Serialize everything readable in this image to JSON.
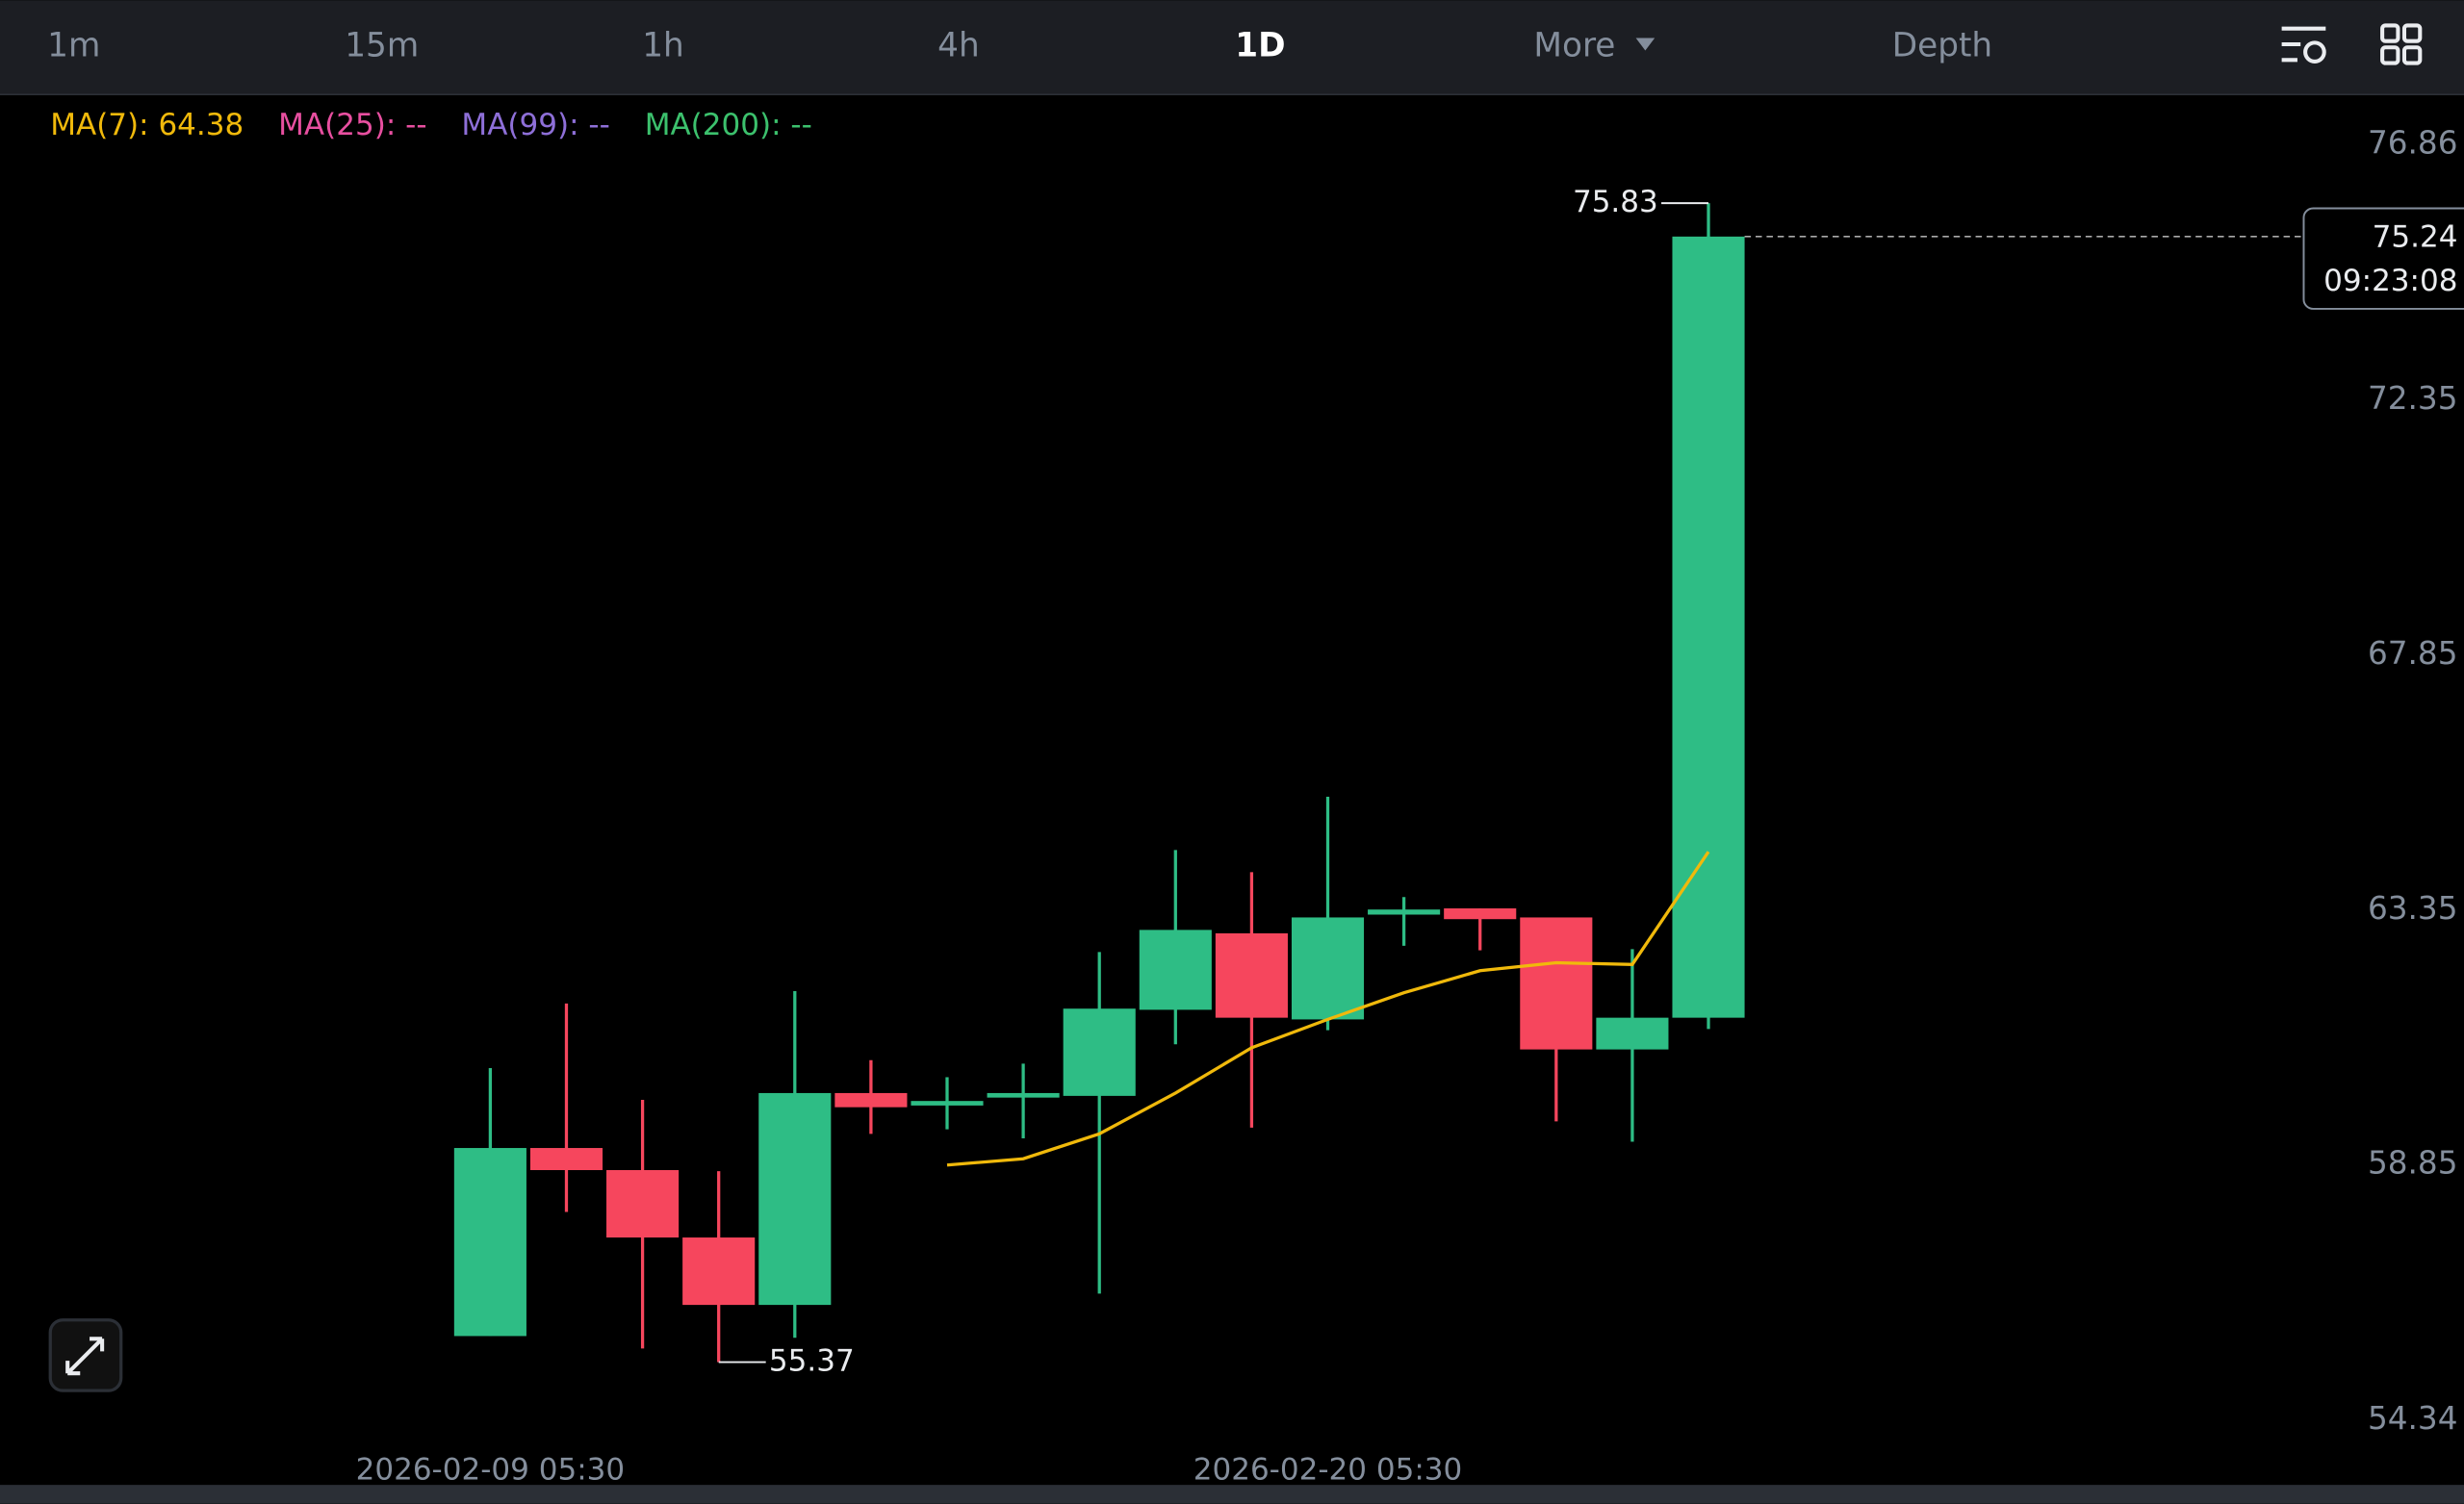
{
  "tabs": [
    {
      "label": "1m"
    },
    {
      "label": "15m"
    },
    {
      "label": "1h"
    },
    {
      "label": "4h"
    },
    {
      "label": "1D",
      "active": true
    },
    {
      "label": "More"
    },
    {
      "label": "Depth"
    }
  ],
  "chart_data": {
    "type": "candlestick",
    "indicators": [
      {
        "label": "MA(7): 64.38",
        "color": "#f0b90b"
      },
      {
        "label": "MA(25): --",
        "color": "#e84fa0"
      },
      {
        "label": "MA(99): --",
        "color": "#8e6fd8"
      },
      {
        "label": "MA(200): --",
        "color": "#3cc16d"
      }
    ],
    "categories": [
      "2026-02-09 05:30",
      null,
      null,
      null,
      null,
      null,
      null,
      null,
      null,
      null,
      null,
      "2026-02-20 05:30",
      null,
      null,
      null,
      null,
      null
    ],
    "open": [
      55.83,
      59.15,
      58.76,
      57.57,
      56.38,
      60.12,
      59.9,
      60.04,
      60.07,
      61.59,
      62.94,
      61.42,
      63.27,
      63.38,
      63.22,
      60.89,
      61.45
    ],
    "close": [
      59.15,
      58.76,
      57.57,
      56.38,
      60.12,
      59.87,
      59.98,
      60.12,
      61.61,
      63.0,
      61.45,
      63.22,
      63.36,
      63.19,
      60.89,
      61.45,
      75.24
    ],
    "high": [
      60.56,
      61.7,
      60.0,
      58.74,
      61.92,
      60.7,
      60.4,
      60.64,
      62.61,
      64.41,
      64.02,
      65.35,
      63.58,
      63.38,
      63.22,
      62.66,
      75.83
    ],
    "low": [
      55.83,
      58.02,
      55.61,
      55.37,
      55.8,
      59.4,
      59.48,
      59.32,
      56.58,
      60.98,
      59.51,
      61.23,
      62.72,
      62.64,
      59.62,
      59.26,
      61.25
    ],
    "up_color": "#2ebd85",
    "down_color": "#f6465d",
    "series": [
      {
        "name": "MA(7)",
        "color": "#f0b90b",
        "values": [
          null,
          null,
          null,
          null,
          null,
          null,
          58.85,
          58.96,
          59.4,
          60.12,
          60.92,
          61.42,
          61.89,
          62.28,
          62.42,
          62.39,
          64.38
        ]
      }
    ],
    "annotations": [
      {
        "label": "75.83",
        "value": 75.83,
        "index": 16
      },
      {
        "label": "55.37",
        "value": 55.37,
        "index": 3
      }
    ],
    "last_price": {
      "value": 75.24,
      "countdown": "09:23:08"
    },
    "ylim": [
      54.34,
      76.86
    ],
    "yticks": [
      76.86,
      72.35,
      67.85,
      63.35,
      58.85,
      54.34
    ]
  }
}
